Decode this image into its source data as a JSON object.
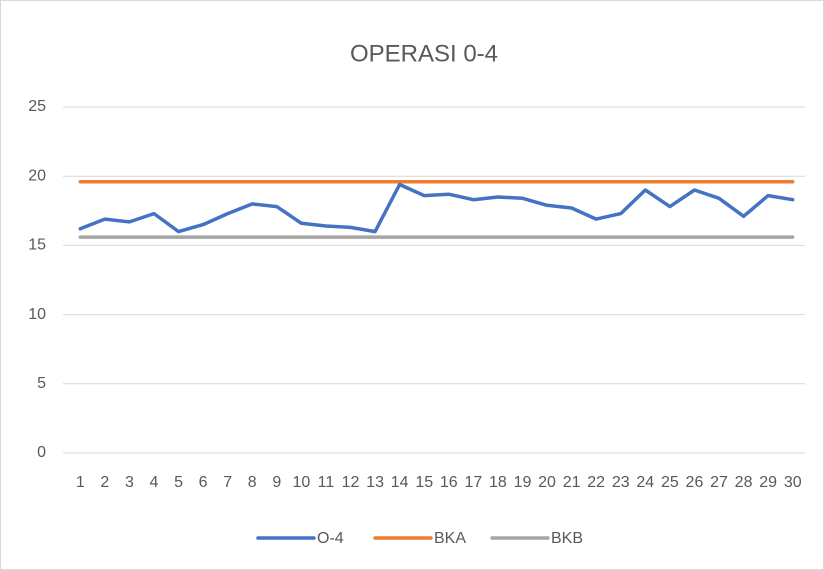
{
  "chart_data": {
    "type": "line",
    "title": "OPERASI 0-4",
    "categories": [
      "1",
      "2",
      "3",
      "4",
      "5",
      "6",
      "7",
      "8",
      "9",
      "10",
      "11",
      "12",
      "13",
      "14",
      "15",
      "16",
      "17",
      "18",
      "19",
      "20",
      "21",
      "22",
      "23",
      "24",
      "25",
      "26",
      "27",
      "28",
      "29",
      "30"
    ],
    "series": [
      {
        "name": "O-4",
        "color": "#4472c4",
        "values": [
          16.2,
          16.9,
          16.7,
          17.3,
          16.0,
          16.5,
          17.3,
          18.0,
          17.8,
          16.6,
          16.4,
          16.3,
          16.0,
          19.4,
          18.6,
          18.7,
          18.3,
          18.5,
          18.4,
          17.9,
          17.7,
          16.9,
          17.3,
          19.0,
          17.8,
          19.0,
          18.4,
          17.1,
          18.6,
          18.3
        ]
      },
      {
        "name": "BKA",
        "color": "#ed7d31",
        "values": [
          19.6,
          19.6,
          19.6,
          19.6,
          19.6,
          19.6,
          19.6,
          19.6,
          19.6,
          19.6,
          19.6,
          19.6,
          19.6,
          19.6,
          19.6,
          19.6,
          19.6,
          19.6,
          19.6,
          19.6,
          19.6,
          19.6,
          19.6,
          19.6,
          19.6,
          19.6,
          19.6,
          19.6,
          19.6,
          19.6
        ]
      },
      {
        "name": "BKB",
        "color": "#a5a5a5",
        "values": [
          15.6,
          15.6,
          15.6,
          15.6,
          15.6,
          15.6,
          15.6,
          15.6,
          15.6,
          15.6,
          15.6,
          15.6,
          15.6,
          15.6,
          15.6,
          15.6,
          15.6,
          15.6,
          15.6,
          15.6,
          15.6,
          15.6,
          15.6,
          15.6,
          15.6,
          15.6,
          15.6,
          15.6,
          15.6,
          15.6
        ]
      }
    ],
    "ylim": [
      0,
      25
    ],
    "yticks": [
      0,
      5,
      10,
      15,
      20,
      25
    ],
    "grid": true,
    "legend": "bottom"
  }
}
